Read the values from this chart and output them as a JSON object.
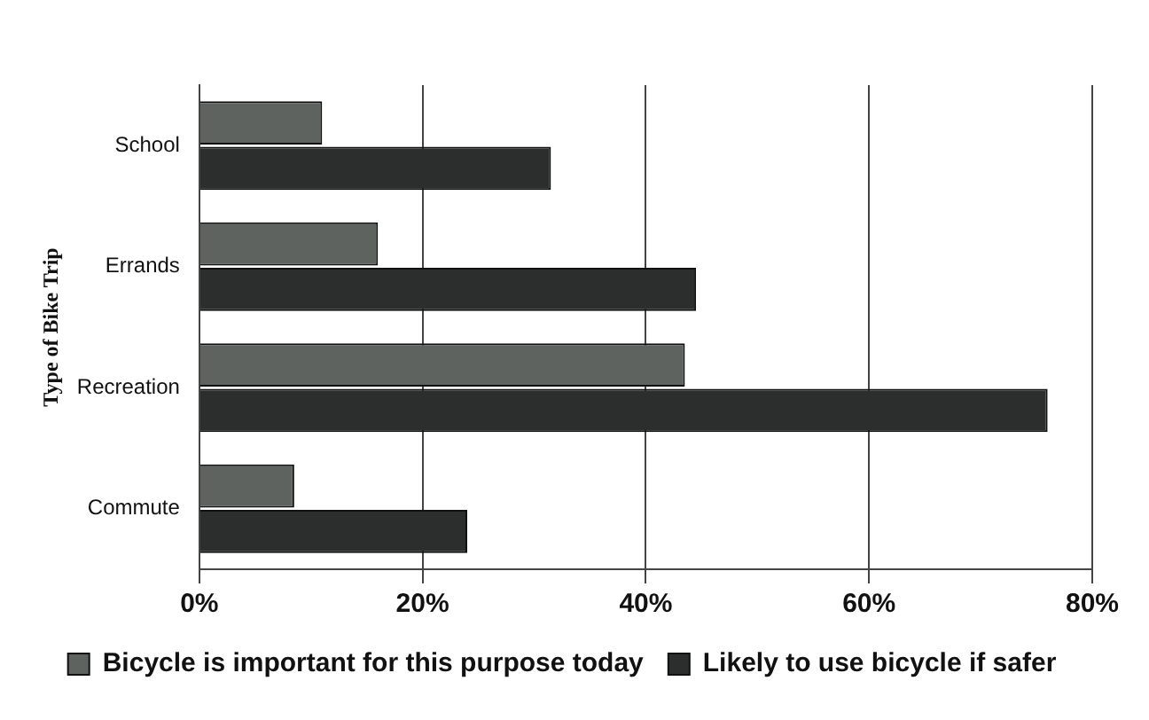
{
  "chart_data": {
    "type": "bar",
    "orientation": "horizontal",
    "ylabel": "Type of Bike Trip",
    "categories": [
      "School",
      "Errands",
      "Recreation",
      "Commute"
    ],
    "series": [
      {
        "name": "Bicycle is important for this purpose today",
        "color": "#5e6360",
        "values": [
          11,
          16,
          43.5,
          8.5
        ]
      },
      {
        "name": "Likely to use bicycle if safer",
        "color": "#2b2e2d",
        "values": [
          31.5,
          44.5,
          76,
          24
        ]
      }
    ],
    "xlim": [
      0,
      80
    ],
    "xticks": [
      {
        "value": 0,
        "label": "0%"
      },
      {
        "value": 20,
        "label": "20%"
      },
      {
        "value": 40,
        "label": "40%"
      },
      {
        "value": 60,
        "label": "60%"
      },
      {
        "value": 80,
        "label": "80%"
      }
    ],
    "grid": "x",
    "legend": "bottom"
  }
}
